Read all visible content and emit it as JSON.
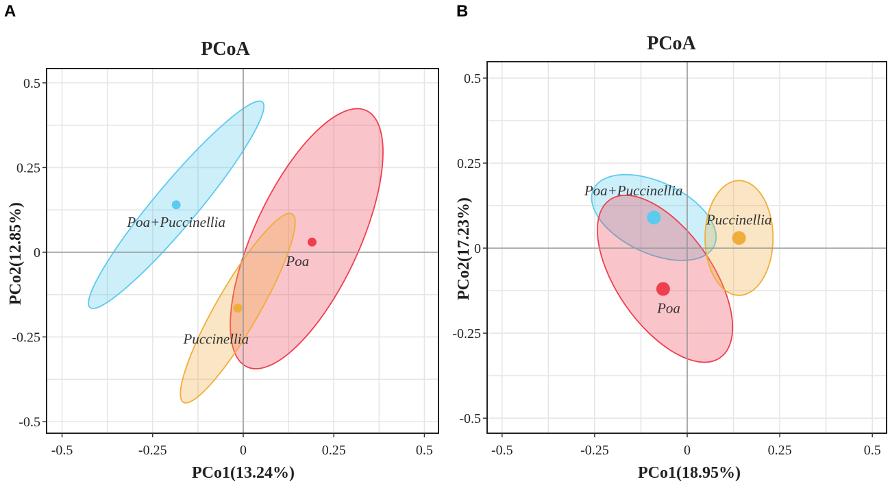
{
  "chart_data": [
    {
      "type": "scatter",
      "panel": "A",
      "title": "PCoA",
      "xlabel": "PCo1(13.24%)",
      "ylabel": "PCo2(12.85%)",
      "xlim": [
        -0.52,
        0.52
      ],
      "ylim": [
        -0.52,
        0.52
      ],
      "xticks": [
        -0.5,
        -0.25,
        0,
        0.25,
        0.5
      ],
      "yticks": [
        -0.5,
        -0.25,
        0,
        0.25,
        0.5
      ],
      "xtick_labels": [
        "-0.5",
        "-0.25",
        "0",
        "0.25",
        "0.5"
      ],
      "ytick_labels": [
        "-0.5",
        "-0.25",
        "0",
        "0.25",
        "0.5"
      ],
      "grid": true,
      "series": [
        {
          "name": "Poa+Puccinellia",
          "label": "Poa+Puccinellia",
          "color": "#5bcbef",
          "x": -0.185,
          "y": 0.14,
          "ellipse": {
            "cx": -0.185,
            "cy": 0.14,
            "rx": 0.37,
            "ry": 0.063,
            "angle_deg": 50
          },
          "label_pos": [
            -0.185,
            0.075
          ]
        },
        {
          "name": "Poa",
          "label": "Poa",
          "color": "#ef3f4f",
          "x": 0.19,
          "y": 0.03,
          "ellipse": {
            "cx": 0.175,
            "cy": 0.04,
            "rx": 0.39,
            "ry": 0.155,
            "angle_deg": 65
          },
          "label_pos": [
            0.15,
            -0.04
          ]
        },
        {
          "name": "Puccinellia",
          "label": "Puccinellia",
          "color": "#f0ad3b",
          "x": -0.015,
          "y": -0.165,
          "ellipse": {
            "cx": -0.015,
            "cy": -0.165,
            "rx": 0.3,
            "ry": 0.063,
            "angle_deg": 60
          },
          "label_pos": [
            -0.075,
            -0.27
          ]
        }
      ]
    },
    {
      "type": "scatter",
      "panel": "B",
      "title": "PCoA",
      "xlabel": "PCo1(18.95%)",
      "ylabel": "PCo2(17.23%)",
      "xlim": [
        -0.52,
        0.52
      ],
      "ylim": [
        -0.52,
        0.52
      ],
      "xticks": [
        -0.5,
        -0.25,
        0,
        0.25,
        0.5
      ],
      "yticks": [
        -0.5,
        -0.25,
        0,
        0.25,
        0.5
      ],
      "xtick_labels": [
        "-0.5",
        "-0.25",
        "0",
        "0.25",
        "0.5"
      ],
      "ytick_labels": [
        "-0.5",
        "-0.25",
        "0",
        "0.25",
        "0.5"
      ],
      "grid": true,
      "series": [
        {
          "name": "Poa+Puccinellia",
          "label": "Poa+Puccinellia",
          "color": "#5bcbef",
          "x": -0.09,
          "y": 0.09,
          "ellipse": {
            "cx": -0.09,
            "cy": 0.09,
            "rx": 0.18,
            "ry": 0.105,
            "angle_deg": -25
          },
          "label_pos": [
            -0.145,
            0.155
          ]
        },
        {
          "name": "Poa",
          "label": "Poa",
          "color": "#ef3f4f",
          "x": -0.065,
          "y": -0.12,
          "ellipse": {
            "cx": -0.06,
            "cy": -0.09,
            "rx": 0.26,
            "ry": 0.14,
            "angle_deg": -55
          },
          "label_pos": [
            -0.05,
            -0.19
          ]
        },
        {
          "name": "Puccinellia",
          "label": "Puccinellia",
          "color": "#f0ad3b",
          "x": 0.14,
          "y": 0.03,
          "ellipse": {
            "cx": 0.14,
            "cy": 0.03,
            "rx": 0.155,
            "ry": 0.1,
            "angle_deg": 90
          },
          "label_pos": [
            0.14,
            0.07
          ]
        }
      ]
    }
  ]
}
